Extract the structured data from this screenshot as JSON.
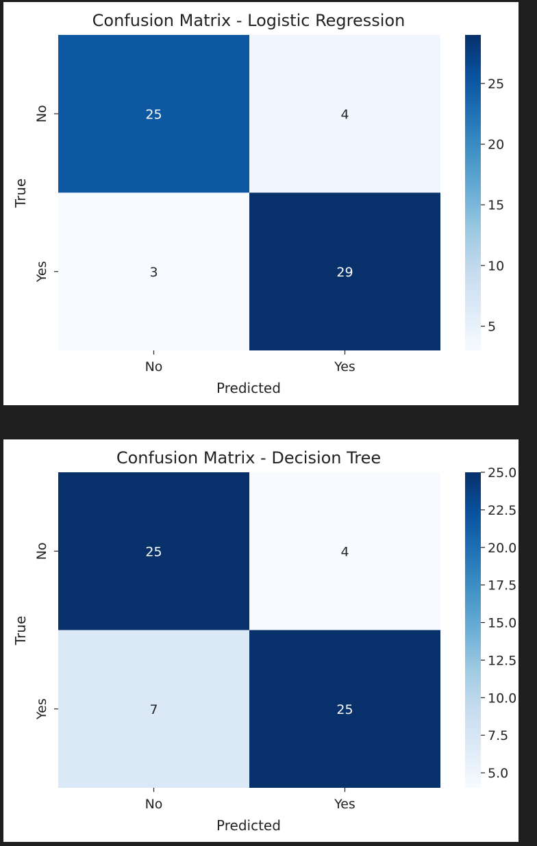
{
  "chart_data": [
    {
      "type": "heatmap",
      "title": "Confusion Matrix - Logistic Regression",
      "xlabel": "Predicted",
      "ylabel": "True",
      "x_categories": [
        "No",
        "Yes"
      ],
      "y_categories": [
        "No",
        "Yes"
      ],
      "values": [
        [
          25,
          4
        ],
        [
          3,
          29
        ]
      ],
      "colormap": "Blues",
      "colorbar_range": [
        3,
        29
      ],
      "colorbar_ticks": [
        "5",
        "10",
        "15",
        "20",
        "25"
      ],
      "colorbar_tick_values": [
        5,
        10,
        15,
        20,
        25
      ],
      "grid": false,
      "legend": "colorbar-right"
    },
    {
      "type": "heatmap",
      "title": "Confusion Matrix - Decision Tree",
      "xlabel": "Predicted",
      "ylabel": "True",
      "x_categories": [
        "No",
        "Yes"
      ],
      "y_categories": [
        "No",
        "Yes"
      ],
      "values": [
        [
          25,
          4
        ],
        [
          7,
          25
        ]
      ],
      "colormap": "Blues",
      "colorbar_range": [
        4,
        25
      ],
      "colorbar_ticks": [
        "5.0",
        "7.5",
        "10.0",
        "12.5",
        "15.0",
        "17.5",
        "20.0",
        "22.5",
        "25.0"
      ],
      "colorbar_tick_values": [
        5,
        7.5,
        10,
        12.5,
        15,
        17.5,
        20,
        22.5,
        25
      ],
      "grid": false,
      "legend": "colorbar-right"
    }
  ]
}
